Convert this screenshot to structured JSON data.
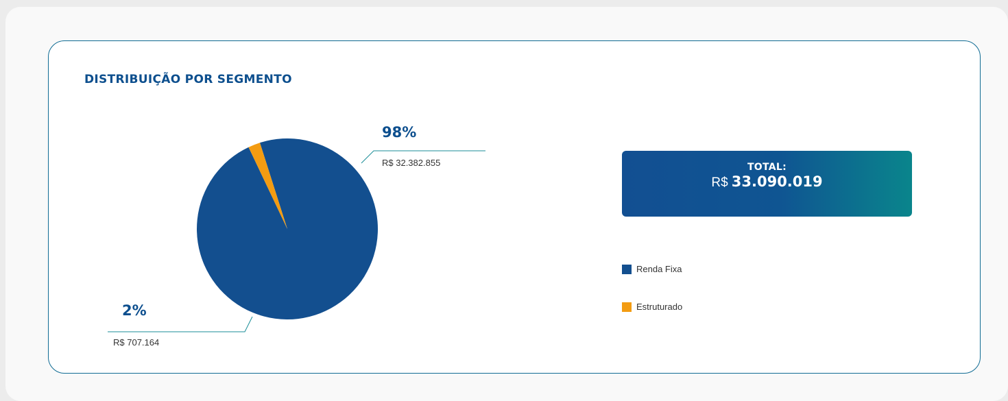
{
  "title": "DISTRIBUIÇÃO POR SEGMENTO",
  "total": {
    "label": "TOTAL:",
    "currency": "R$",
    "value": "33.090.019"
  },
  "colors": {
    "renda_fixa": "#134f8f",
    "estruturado": "#f39c12",
    "accent": "#0d4f8e"
  },
  "labels": {
    "renda_fixa_pct": "98%",
    "renda_fixa_amount": "R$  32.382.855",
    "estruturado_pct": "2%",
    "estruturado_amount": "R$ 707.164"
  },
  "legend": [
    {
      "label": "Renda Fixa",
      "color": "#134f8f"
    },
    {
      "label": "Estruturado",
      "color": "#f39c12"
    }
  ],
  "chart_data": {
    "type": "pie",
    "title": "DISTRIBUIÇÃO POR SEGMENTO",
    "categories": [
      "Renda Fixa",
      "Estruturado"
    ],
    "values": [
      32382855,
      707164
    ],
    "percent_labels": [
      "98%",
      "2%"
    ],
    "value_labels": [
      "R$  32.382.855",
      "R$ 707.164"
    ],
    "colors": [
      "#134f8f",
      "#f39c12"
    ],
    "legend_position": "right"
  }
}
